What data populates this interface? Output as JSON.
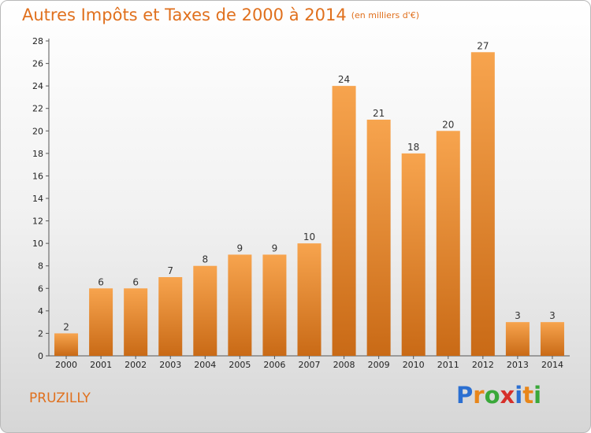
{
  "title": "Autres Impôts et Taxes de 2000 à 2014",
  "title_unit": "(en milliers d'€)",
  "location": "PRUZILLY",
  "logo": {
    "text": "Proxiti",
    "letters": [
      {
        "ch": "P",
        "color": "#2b6fd1"
      },
      {
        "ch": "r",
        "color": "#e8861a"
      },
      {
        "ch": "o",
        "color": "#3aa83a"
      },
      {
        "ch": "x",
        "color": "#d6302a"
      },
      {
        "ch": "i",
        "color": "#2b6fd1"
      },
      {
        "ch": "t",
        "color": "#e8861a"
      },
      {
        "ch": "i",
        "color": "#3aa83a"
      }
    ]
  },
  "colors": {
    "bar_light": "#f7a44e",
    "bar_dark": "#c96a16",
    "title": "#e0701d"
  },
  "chart_data": {
    "type": "bar",
    "categories": [
      "2000",
      "2001",
      "2002",
      "2003",
      "2004",
      "2005",
      "2006",
      "2007",
      "2008",
      "2009",
      "2010",
      "2011",
      "2012",
      "2013",
      "2014"
    ],
    "values": [
      2,
      6,
      6,
      7,
      8,
      9,
      9,
      10,
      24,
      21,
      18,
      20,
      27,
      3,
      3
    ],
    "title": "Autres Impôts et Taxes de 2000 à 2014",
    "xlabel": "",
    "ylabel": "",
    "ylim": [
      0,
      28
    ],
    "yticks": [
      0,
      2,
      4,
      6,
      8,
      10,
      12,
      14,
      16,
      18,
      20,
      22,
      24,
      26,
      28
    ],
    "grid": false,
    "legend": "none"
  }
}
